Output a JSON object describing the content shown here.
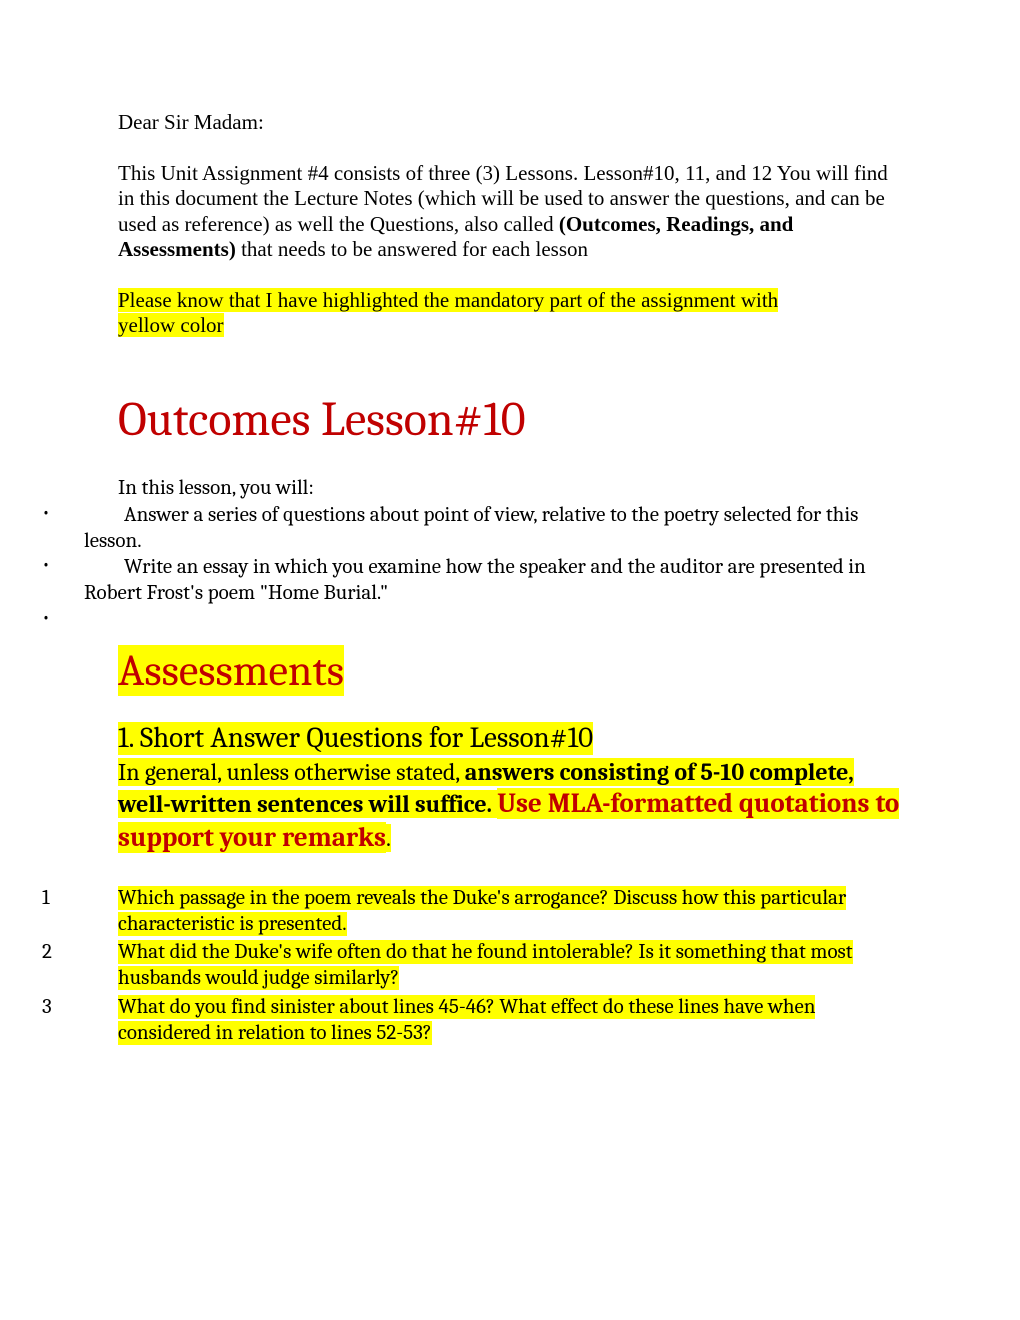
{
  "colors": {
    "heading": "#c00000",
    "highlight": "#ffff00",
    "text": "#000000",
    "background": "#ffffff"
  },
  "intro": {
    "greeting": "Dear Sir Madam:",
    "p1a": "This Unit Assignment #4 consists of three (3) Lessons.  Lesson#10, 11, and 12 You will find in this document the Lecture Notes (which will be used to answer the questions, and can be used as reference) as well the Questions, also called ",
    "p1_bold": "(Outcomes, Readings, and Assessments)",
    "p1b": " that needs to be answered for each lesson",
    "highlight_note_a": "Please know that I have highlighted the mandatory part of the assignment with ",
    "highlight_note_b": "yellow color"
  },
  "outcomes": {
    "title": "Outcomes Lesson#10",
    "lead": "In this lesson, you will:",
    "bullets": [
      "Answer a series of questions about point of view, relative to the poetry selected for this lesson.",
      "Write an essay in which you examine how the speaker and the auditor are presented in Robert Frost's poem \"Home Burial.\""
    ]
  },
  "assessments": {
    "title": "Assessments",
    "subhead": "1. Short Answer Questions for Lesson#10",
    "instr_a": "In general, unless otherwise stated, ",
    "instr_bold": "answers consisting of 5-10 complete, well-written sentences will suffice. ",
    "instr_mla": "Use MLA-formatted quotations to support your remarks",
    "instr_period": ".",
    "questions": [
      {
        "n": "1",
        "t": "Which passage in the poem reveals the Duke's arrogance? Discuss how this particular characteristic is presented."
      },
      {
        "n": "2",
        "t": "What did the Duke's wife often do that he found intolerable? Is it something that most husbands would judge similarly?"
      },
      {
        "n": "3",
        "t": "What do you find sinister about lines 45-46? What effect do these lines have when considered in relation to lines 52-53?"
      }
    ]
  }
}
